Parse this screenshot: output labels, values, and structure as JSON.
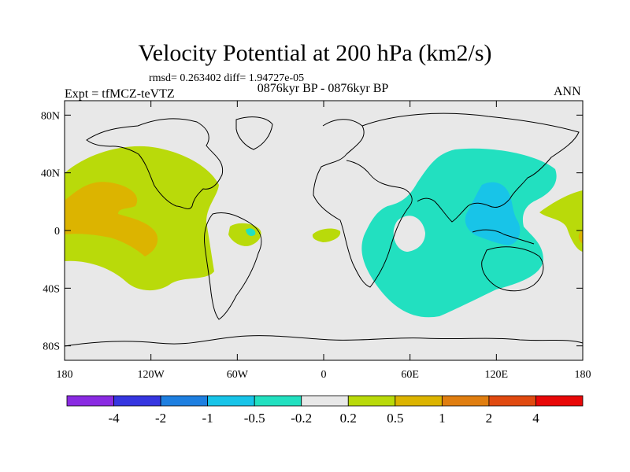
{
  "chart_data": {
    "type": "contour-map",
    "title": "Velocity Potential at 200 hPa (km2/s)",
    "stats": "rmsd= 0.263402 diff= 1.94727e-05",
    "left_label": "Expt = tfMCZ-teVTZ",
    "center_label": "0876kyr BP - 0876kyr BP",
    "right_label": "ANN",
    "x_ticks": [
      {
        "lon": -180,
        "label": "180"
      },
      {
        "lon": -120,
        "label": "120W"
      },
      {
        "lon": -60,
        "label": "60W"
      },
      {
        "lon": 0,
        "label": "0"
      },
      {
        "lon": 60,
        "label": "60E"
      },
      {
        "lon": 120,
        "label": "120E"
      },
      {
        "lon": 180,
        "label": "180"
      }
    ],
    "y_ticks": [
      {
        "lat": 80,
        "label": "80N"
      },
      {
        "lat": 40,
        "label": "40N"
      },
      {
        "lat": 0,
        "label": "0"
      },
      {
        "lat": -40,
        "label": "40S"
      },
      {
        "lat": -80,
        "label": "80S"
      }
    ],
    "xlim": [
      -180,
      180
    ],
    "ylim": [
      -90,
      90
    ],
    "colorbar": {
      "colors": [
        "#8a2be2",
        "#3636e0",
        "#1e7fe0",
        "#18c4e8",
        "#22e0c0",
        "#e8e8e8",
        "#b9da0a",
        "#dcb400",
        "#e07e10",
        "#e04a10",
        "#e80808"
      ],
      "labels": [
        "-4",
        "-2",
        "-1",
        "-0.5",
        "-0.2",
        "0.2",
        "0.5",
        "1",
        "2",
        "4"
      ]
    },
    "regions": [
      {
        "level": "0.2 to 0.5",
        "color": "#b9da0a",
        "area": "Central/Eastern Pacific"
      },
      {
        "level": "0.5 to 1",
        "color": "#dcb400",
        "area": "Central Pacific core"
      },
      {
        "level": "-0.5 to -0.2",
        "color": "#22e0c0",
        "area": "Indian Ocean / Asia / Maritime Continent"
      },
      {
        "level": "-1 to -0.5",
        "color": "#18c4e8",
        "area": "Maritime Continent / South China Sea"
      }
    ]
  }
}
